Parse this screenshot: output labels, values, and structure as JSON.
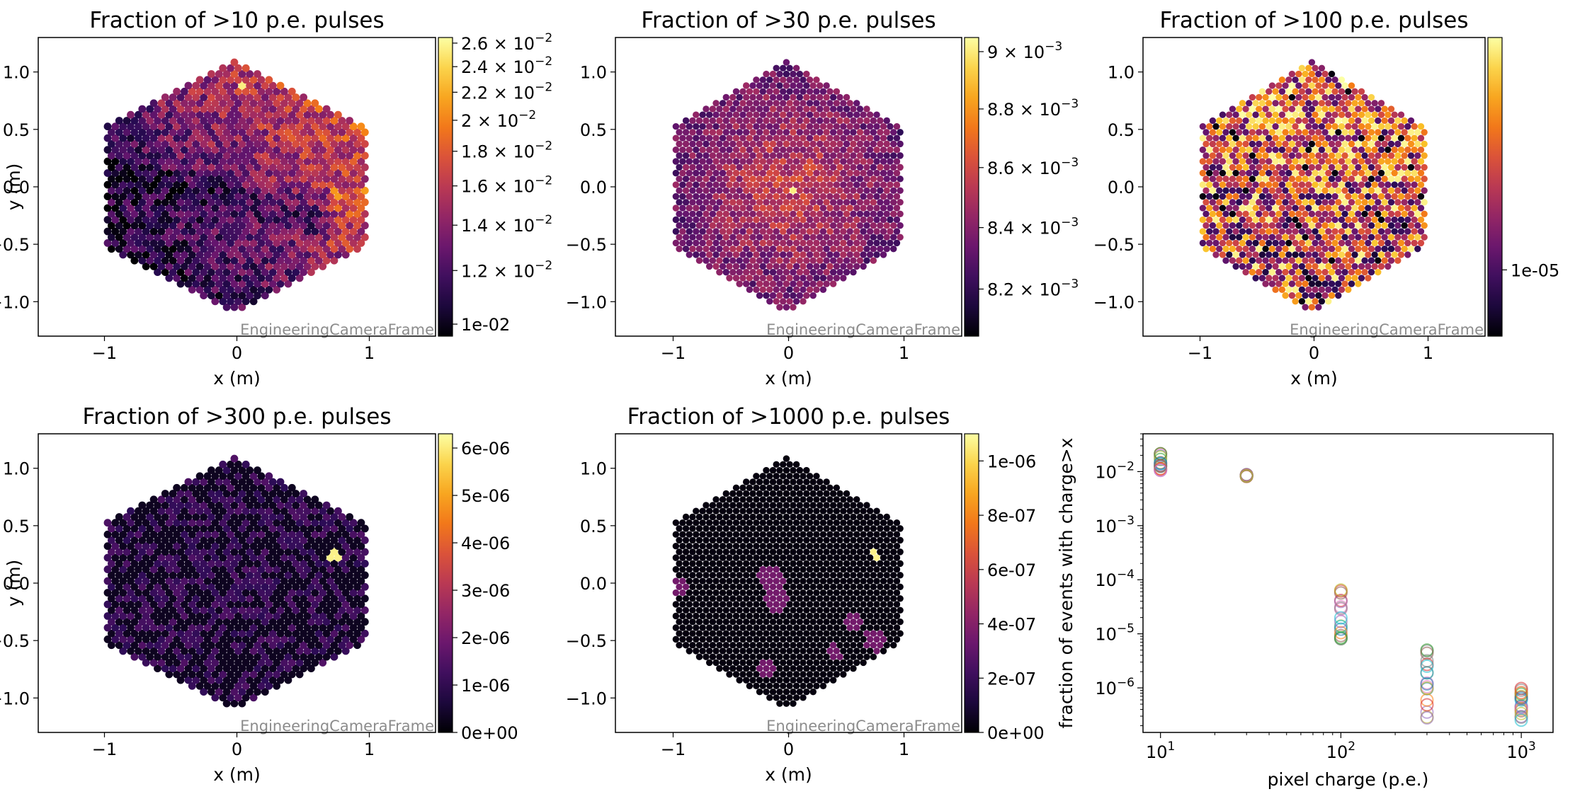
{
  "chart_data": [
    {
      "type": "heatmap",
      "title": "Fraction of >10 p.e. pulses",
      "xlabel": "x  (m)",
      "ylabel": "y (m)",
      "xlim": [
        -1.5,
        1.5
      ],
      "ylim": [
        -1.3,
        1.3
      ],
      "xticks": [
        "−1",
        "0",
        "1"
      ],
      "yticks": [
        "−1.0",
        "−0.5",
        "0.0",
        "0.5",
        "1.0"
      ],
      "watermark": "EngineeringCameraFrame",
      "colormap": "inferno",
      "color_scale": "log",
      "colorbar_ticks": [
        {
          "mant": "2.6",
          "exp": "−2"
        },
        {
          "mant": "2.4",
          "exp": "−2"
        },
        {
          "mant": "2.2",
          "exp": "−2"
        },
        {
          "mant": "2",
          "exp": "−2"
        },
        {
          "mant": "1.8",
          "exp": "−2"
        },
        {
          "mant": "1.6",
          "exp": "−2"
        },
        {
          "mant": "1.4",
          "exp": "−2"
        },
        {
          "mant": "1.2",
          "exp": "−2"
        },
        {
          "plain": "1e-02"
        }
      ],
      "colorbar_range": [
        0.0096,
        0.0265
      ]
    },
    {
      "type": "heatmap",
      "title": "Fraction of >30 p.e. pulses",
      "xlabel": "x  (m)",
      "ylabel": "",
      "xlim": [
        -1.5,
        1.5
      ],
      "ylim": [
        -1.3,
        1.3
      ],
      "xticks": [
        "−1",
        "0",
        "1"
      ],
      "yticks": [
        "−1.0",
        "−0.5",
        "0.0",
        "0.5",
        "1.0"
      ],
      "watermark": "EngineeringCameraFrame",
      "colormap": "inferno",
      "color_scale": "log",
      "colorbar_ticks": [
        {
          "mant": "9",
          "exp": "−3"
        },
        {
          "mant": "8.8",
          "exp": "−3"
        },
        {
          "mant": "8.6",
          "exp": "−3"
        },
        {
          "mant": "8.4",
          "exp": "−3"
        },
        {
          "mant": "8.2",
          "exp": "−3"
        }
      ],
      "colorbar_range": [
        0.00805,
        0.00905
      ]
    },
    {
      "type": "heatmap",
      "title": "Fraction of >100 p.e. pulses",
      "xlabel": "x  (m)",
      "ylabel": "",
      "xlim": [
        -1.5,
        1.5
      ],
      "ylim": [
        -1.3,
        1.3
      ],
      "xticks": [
        "−1",
        "0",
        "1"
      ],
      "yticks": [
        "−1.0",
        "−0.5",
        "0.0",
        "0.5",
        "1.0"
      ],
      "watermark": "EngineeringCameraFrame",
      "colormap": "inferno",
      "color_scale": "log",
      "colorbar_ticks": [
        {
          "plain": "1e-05"
        }
      ],
      "colorbar_range": [
        6e-06,
        6e-05
      ]
    },
    {
      "type": "heatmap",
      "title": "Fraction of >300 p.e. pulses",
      "xlabel": "x  (m)",
      "ylabel": "y (m)",
      "xlim": [
        -1.5,
        1.5
      ],
      "ylim": [
        -1.3,
        1.3
      ],
      "xticks": [
        "−1",
        "0",
        "1"
      ],
      "yticks": [
        "−1.0",
        "−0.5",
        "0.0",
        "0.5",
        "1.0"
      ],
      "watermark": "EngineeringCameraFrame",
      "colormap": "inferno",
      "color_scale": "linear",
      "colorbar_ticks": [
        {
          "plain": "6e-06"
        },
        {
          "plain": "5e-06"
        },
        {
          "plain": "4e-06"
        },
        {
          "plain": "3e-06"
        },
        {
          "plain": "2e-06"
        },
        {
          "plain": "1e-06"
        },
        {
          "plain": "0e+00"
        }
      ],
      "colorbar_range": [
        0,
        6.3e-06
      ]
    },
    {
      "type": "heatmap",
      "title": "Fraction of >1000 p.e. pulses",
      "xlabel": "x  (m)",
      "ylabel": "",
      "xlim": [
        -1.5,
        1.5
      ],
      "ylim": [
        -1.3,
        1.3
      ],
      "xticks": [
        "−1",
        "0",
        "1"
      ],
      "yticks": [
        "−1.0",
        "−0.5",
        "0.0",
        "0.5",
        "1.0"
      ],
      "watermark": "EngineeringCameraFrame",
      "colormap": "inferno",
      "color_scale": "linear",
      "colorbar_ticks": [
        {
          "plain": "1e-06"
        },
        {
          "plain": "8e-07"
        },
        {
          "plain": "6e-07"
        },
        {
          "plain": "4e-07"
        },
        {
          "plain": "2e-07"
        },
        {
          "plain": "0e+00"
        }
      ],
      "colorbar_range": [
        0,
        1.1e-06
      ]
    },
    {
      "type": "scatter",
      "title": "",
      "xlabel": "pixel charge (p.e.)",
      "ylabel": "fraction of events with charge>x",
      "x_scale": "log",
      "y_scale": "log",
      "xlim": [
        8,
        1500
      ],
      "ylim": [
        1.5e-07,
        0.05
      ],
      "xticks": [
        {
          "mant": "10",
          "exp": "1"
        },
        {
          "mant": "10",
          "exp": "2"
        },
        {
          "mant": "10",
          "exp": "3"
        }
      ],
      "yticks": [
        {
          "mant": "10",
          "exp": "−6"
        },
        {
          "mant": "10",
          "exp": "−5"
        },
        {
          "mant": "10",
          "exp": "−4"
        },
        {
          "mant": "10",
          "exp": "−3"
        },
        {
          "mant": "10",
          "exp": "−2"
        }
      ],
      "marker": "open circle",
      "clusters": [
        {
          "x": 10,
          "y_min": 0.0105,
          "y_max": 0.022
        },
        {
          "x": 30,
          "y_min": 0.0081,
          "y_max": 0.0089
        },
        {
          "x": 100,
          "y_min": 5.5e-06,
          "y_max": 6.5e-05
        },
        {
          "x": 300,
          "y_min": 2.5e-07,
          "y_max": 6e-06
        },
        {
          "x": 1000,
          "y_min": 2.5e-07,
          "y_max": 1.1e-06
        }
      ]
    }
  ]
}
